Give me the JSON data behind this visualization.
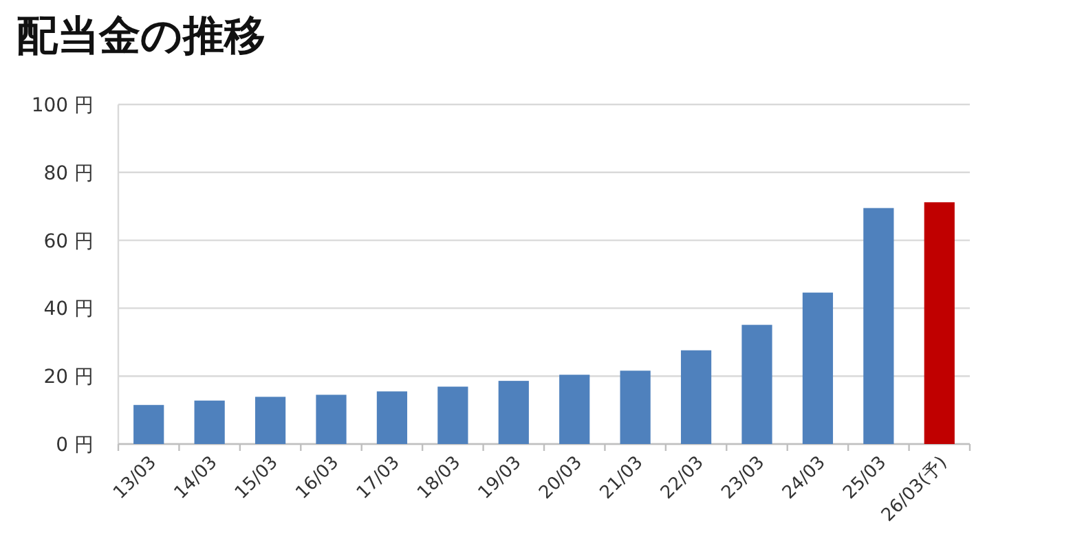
{
  "chart_data": {
    "type": "bar",
    "title": "配当金の推移",
    "categories": [
      "13/03",
      "14/03",
      "15/03",
      "16/03",
      "17/03",
      "18/03",
      "19/03",
      "20/03",
      "21/03",
      "22/03",
      "23/03",
      "24/03",
      "25/03",
      "26/03(予)"
    ],
    "values": [
      11.5,
      12.8,
      13.9,
      14.5,
      15.5,
      16.9,
      18.6,
      20.4,
      21.6,
      27.6,
      35.1,
      44.6,
      69.5,
      71.2
    ],
    "colors": [
      "#4f81bd",
      "#4f81bd",
      "#4f81bd",
      "#4f81bd",
      "#4f81bd",
      "#4f81bd",
      "#4f81bd",
      "#4f81bd",
      "#4f81bd",
      "#4f81bd",
      "#4f81bd",
      "#4f81bd",
      "#4f81bd",
      "#c00000"
    ],
    "ylim": [
      0,
      100
    ],
    "yticks": [
      {
        "value": 0,
        "label": "0 円"
      },
      {
        "value": 20,
        "label": "20 円"
      },
      {
        "value": 40,
        "label": "40 円"
      },
      {
        "value": 60,
        "label": "60 円"
      },
      {
        "value": 80,
        "label": "80 円"
      },
      {
        "value": 100,
        "label": "100 円"
      }
    ],
    "grid": "y"
  }
}
